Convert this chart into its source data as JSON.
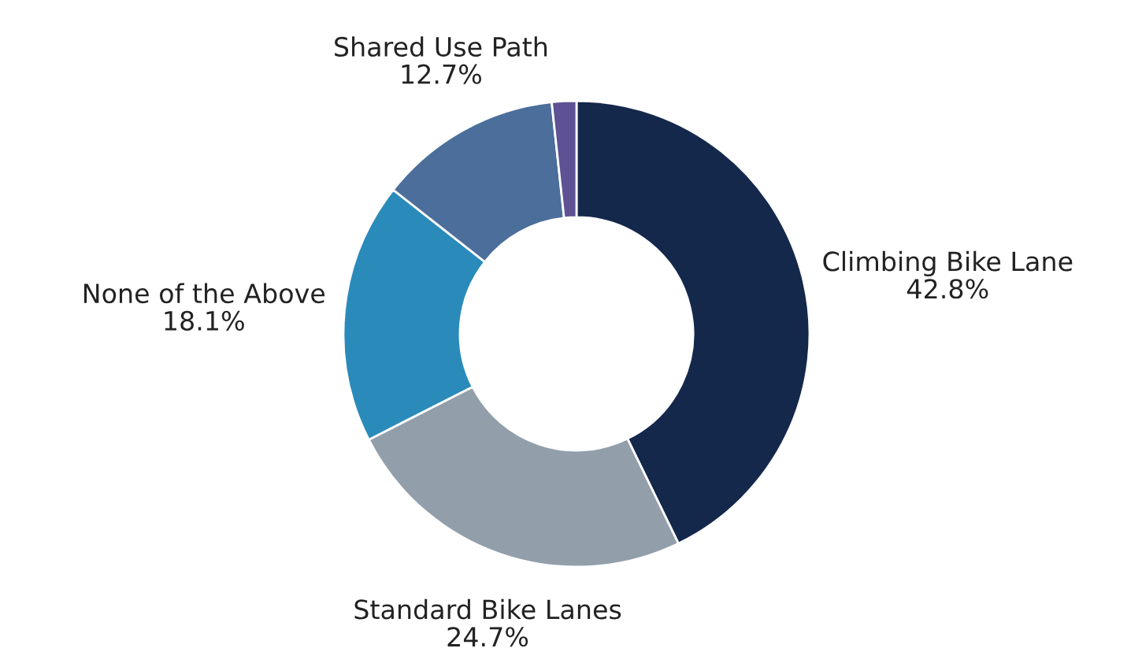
{
  "chart_data": {
    "type": "donut",
    "categories": [
      "Climbing Bike Lane",
      "Standard Bike Lanes",
      "None of the Above",
      "Shared Use Path",
      null
    ],
    "values": [
      42.8,
      24.7,
      18.1,
      12.7,
      1.7
    ],
    "colors": [
      "#14284b",
      "#929fab",
      "#2a8bba",
      "#4b6e9b",
      "#5e5294"
    ],
    "value_labels": [
      "42.8%",
      "24.7%",
      "18.1%",
      "12.7%",
      null
    ]
  }
}
